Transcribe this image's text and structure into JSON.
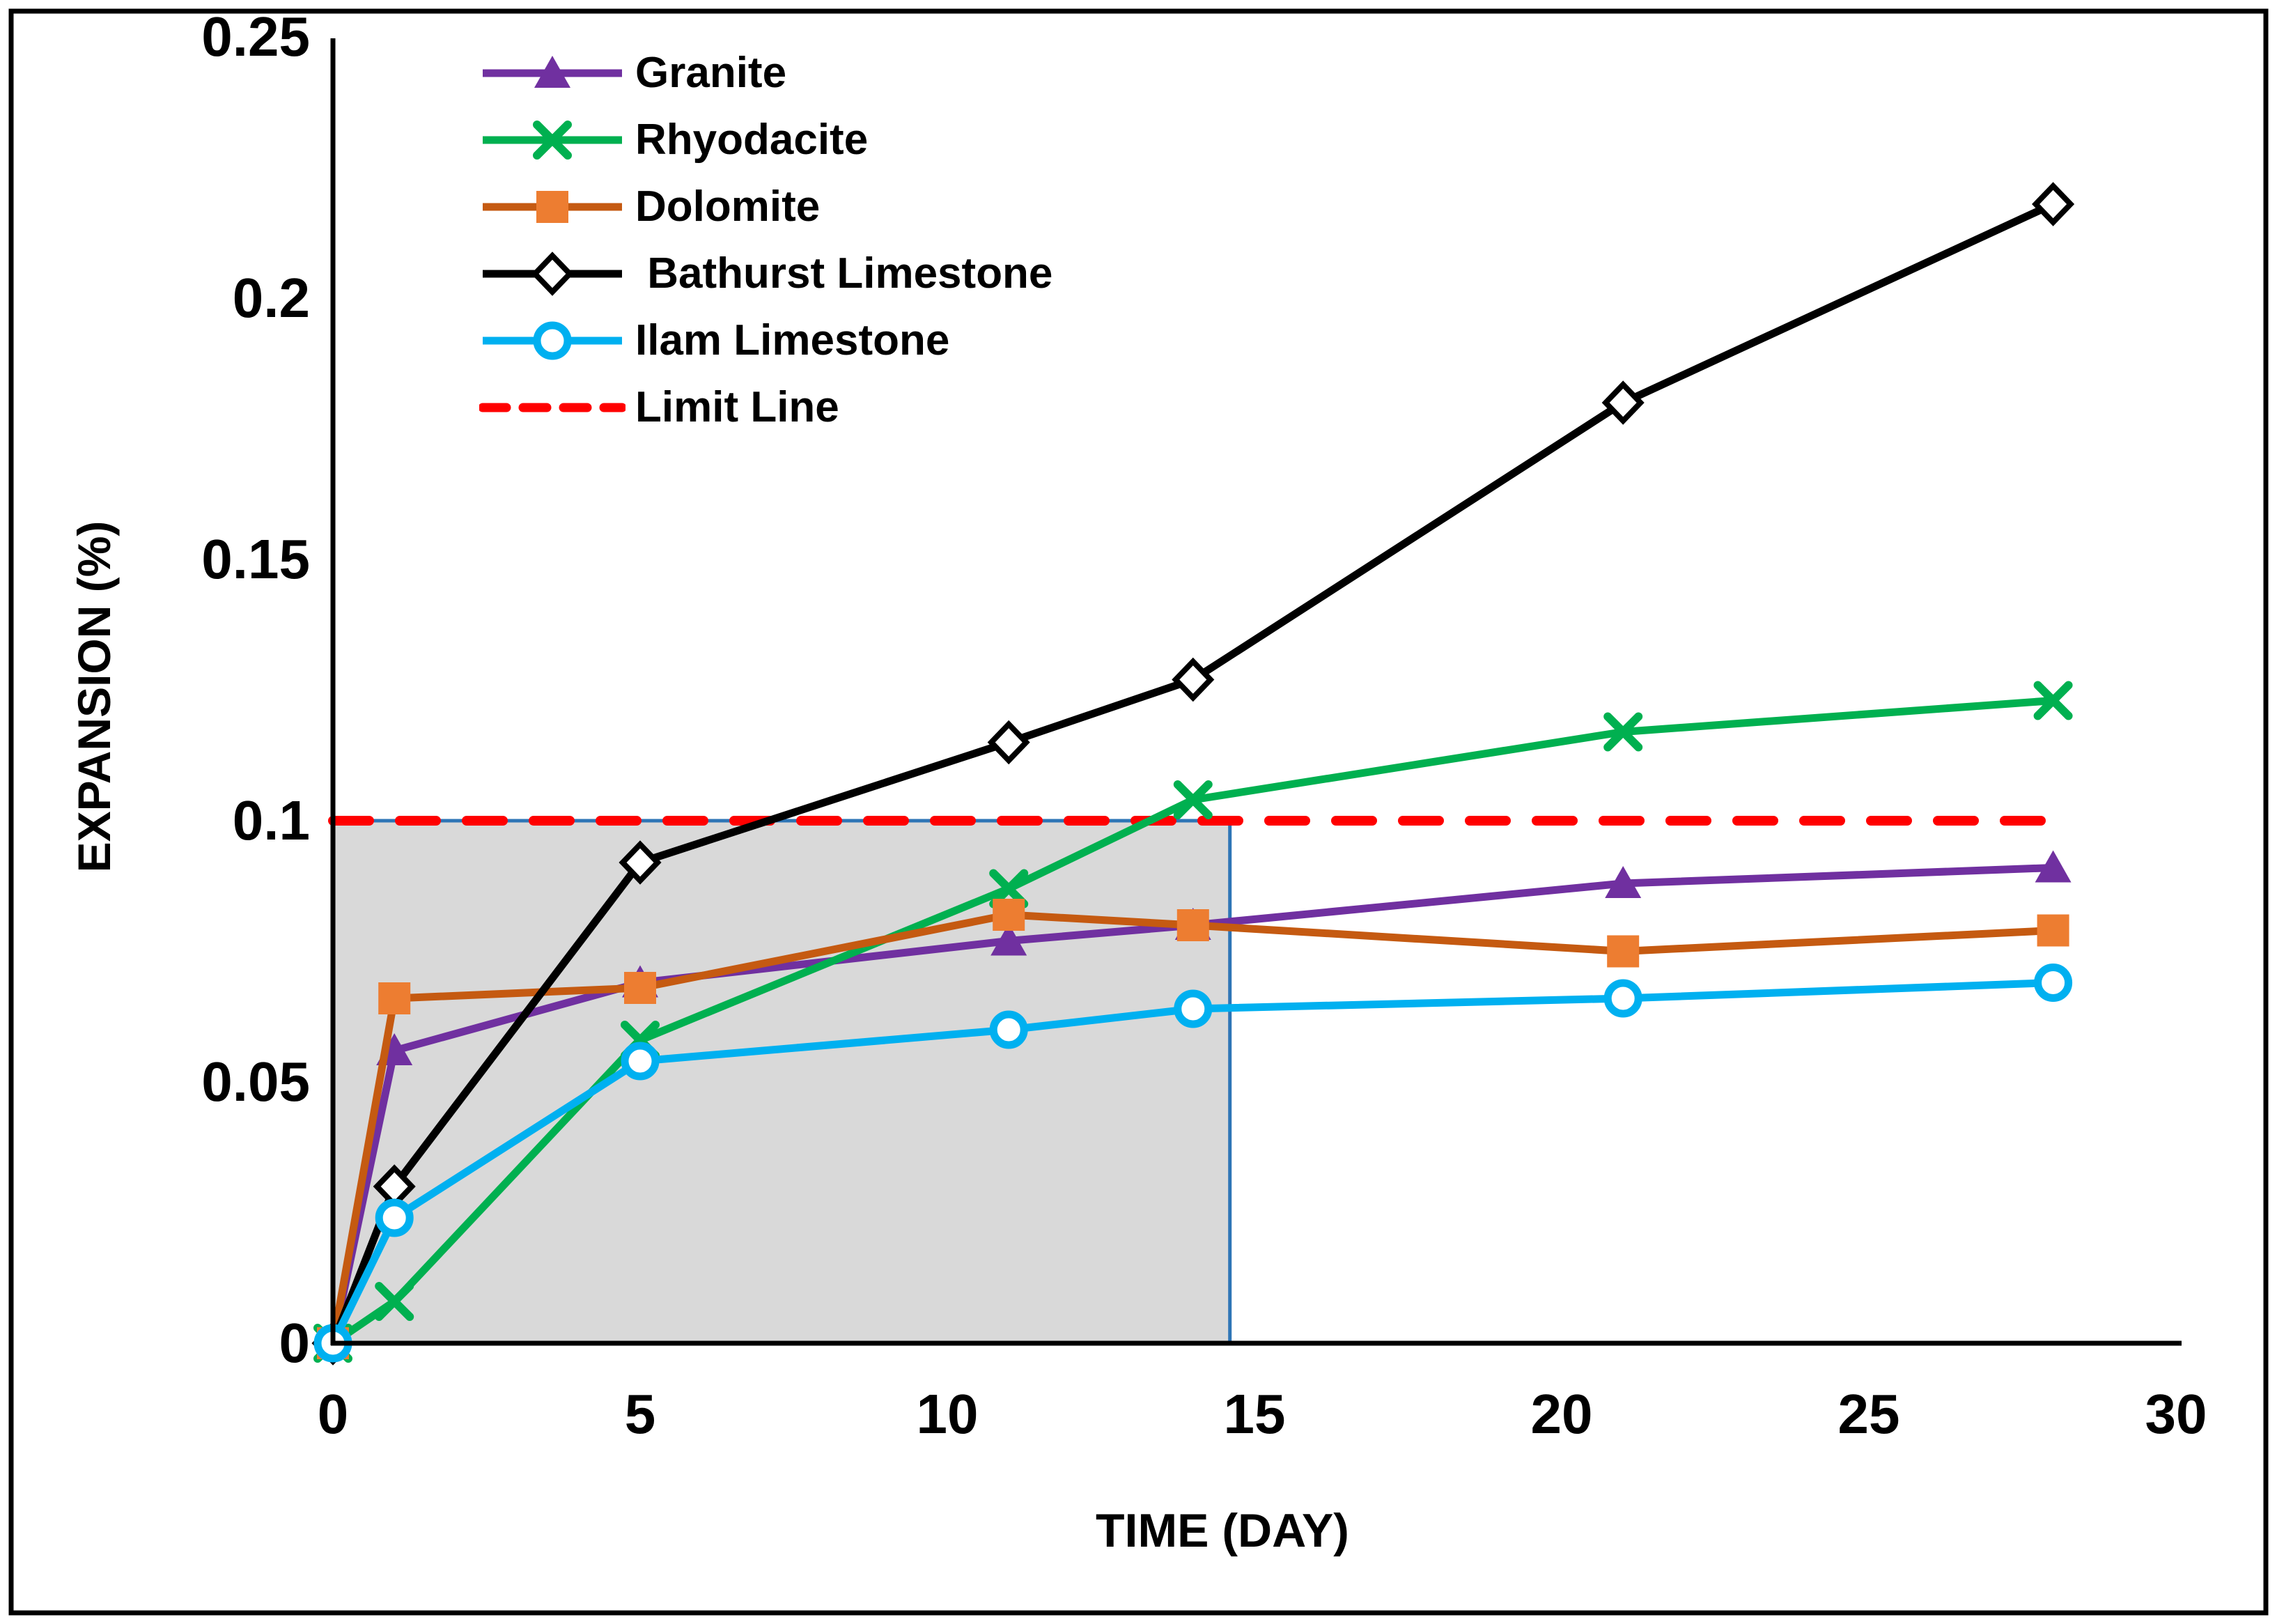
{
  "axes": {
    "x_title": "TIME (DAY)",
    "y_title": "EXPANSION (%)",
    "x_tick_labels": [
      "0",
      "5",
      "10",
      "15",
      "20",
      "25",
      "30"
    ],
    "x_tick_values": [
      0,
      5,
      10,
      15,
      20,
      25,
      30
    ],
    "y_tick_labels": [
      "0",
      "0.05",
      "0.1",
      "0.15",
      "0.2",
      "0.25"
    ],
    "y_tick_values": [
      0,
      0.05,
      0.1,
      0.15,
      0.2,
      0.25
    ]
  },
  "chart_data": {
    "type": "line",
    "title": "",
    "xlabel": "TIME (DAY)",
    "ylabel": "EXPANSION (%)",
    "xlim": [
      0,
      30
    ],
    "ylim": [
      0,
      0.25
    ],
    "grid": false,
    "legend_position": "upper-left-inside",
    "x": [
      0,
      1,
      5,
      11,
      14,
      21,
      28
    ],
    "series": [
      {
        "name": "Granite",
        "color": "#7030A0",
        "marker": "triangle",
        "marker_color": "#7030A0",
        "line_style": "solid",
        "values": [
          0,
          0.056,
          0.069,
          0.077,
          0.08,
          0.088,
          0.091
        ]
      },
      {
        "name": "Rhyodacite",
        "color": "#00B050",
        "marker": "x",
        "marker_color": "#00B050",
        "line_style": "solid",
        "values": [
          0,
          0.008,
          0.058,
          0.087,
          0.104,
          0.117,
          0.123
        ]
      },
      {
        "name": "Dolomite",
        "color": "#C55A11",
        "marker": "square",
        "marker_color": "#ED7D31",
        "line_style": "solid",
        "values": [
          0,
          0.066,
          0.068,
          0.082,
          0.08,
          0.075,
          0.079
        ]
      },
      {
        "name": " Bathurst Limestone",
        "color": "#000000",
        "marker": "diamond",
        "marker_color": "#FFFFFF",
        "line_style": "solid",
        "values": [
          0,
          0.03,
          0.092,
          0.115,
          0.127,
          0.18,
          0.218
        ]
      },
      {
        "name": "Ilam Limestone",
        "color": "#00B0F0",
        "marker": "circle",
        "marker_color": "#FFFFFF",
        "line_style": "solid",
        "values": [
          0,
          0.024,
          0.054,
          0.06,
          0.064,
          0.066,
          0.069
        ]
      },
      {
        "name": "Limit Line",
        "color": "#FF0000",
        "marker": "none",
        "line_style": "dashed",
        "constant_y": 0.1,
        "x_range": [
          0,
          28
        ],
        "values": [
          0.1,
          0.1,
          0.1,
          0.1,
          0.1,
          0.1,
          0.1
        ]
      }
    ],
    "annotations": {
      "shaded_region": {
        "x_range": [
          0,
          14.6
        ],
        "y_range": [
          0,
          0.1
        ],
        "fill": "#D9D9D9",
        "border_color": "#2E75B6"
      }
    }
  }
}
